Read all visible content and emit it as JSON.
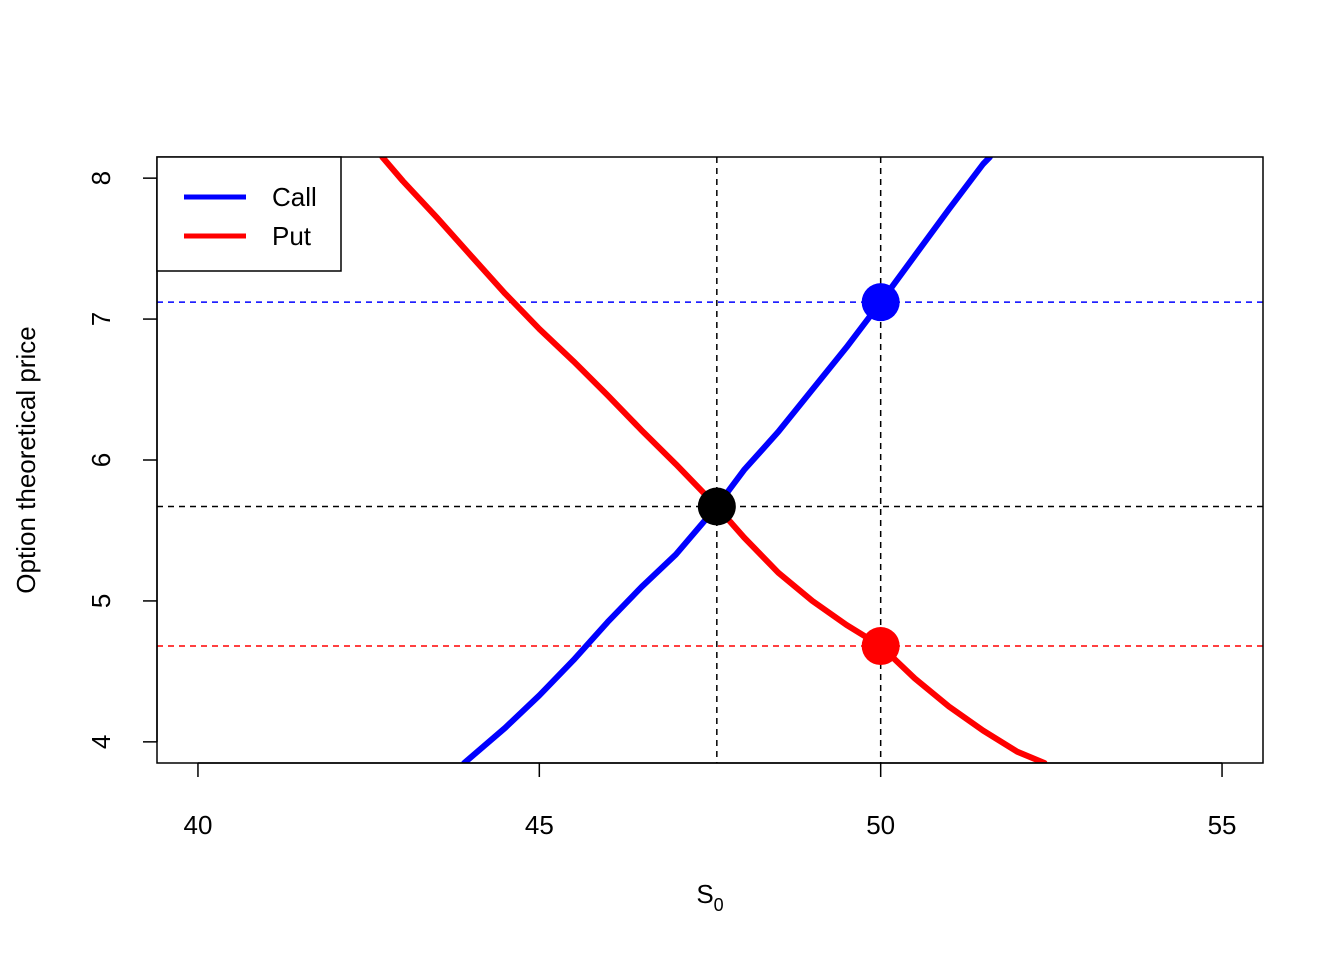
{
  "chart_data": {
    "type": "line",
    "title": "",
    "xlabel": "S",
    "xlabel_subscript": "0",
    "ylabel": "Option theoretical price",
    "xlim": [
      39.4,
      55.6
    ],
    "ylim": [
      3.85,
      8.15
    ],
    "xticks": [
      40,
      45,
      50,
      55
    ],
    "yticks": [
      4,
      5,
      6,
      7,
      8
    ],
    "grid": false,
    "legend": {
      "position": "top-left",
      "entries": [
        "Call",
        "Put"
      ]
    },
    "series": [
      {
        "name": "Call",
        "color": "#0000FF",
        "x": [
          43.9,
          44.5,
          45.0,
          45.5,
          46.0,
          46.5,
          47.0,
          47.6,
          48.0,
          48.5,
          49.0,
          49.5,
          50.0,
          50.5,
          51.0,
          51.5,
          51.6
        ],
        "y": [
          3.85,
          4.1,
          4.33,
          4.58,
          4.85,
          5.1,
          5.33,
          5.67,
          5.93,
          6.2,
          6.5,
          6.8,
          7.12,
          7.45,
          7.78,
          8.1,
          8.15
        ]
      },
      {
        "name": "Put",
        "color": "#FF0000",
        "x": [
          42.7,
          43.0,
          43.5,
          44.0,
          44.5,
          45.0,
          45.5,
          46.0,
          46.5,
          47.0,
          47.6,
          48.0,
          48.5,
          49.0,
          49.5,
          50.0,
          50.5,
          51.0,
          51.5,
          52.0,
          52.4
        ],
        "y": [
          8.15,
          7.98,
          7.72,
          7.45,
          7.18,
          6.93,
          6.7,
          6.46,
          6.21,
          5.97,
          5.67,
          5.45,
          5.2,
          5.0,
          4.83,
          4.68,
          4.45,
          4.25,
          4.08,
          3.93,
          3.85
        ]
      }
    ],
    "reference_lines": {
      "vertical": [
        {
          "x": 47.6,
          "color": "#000000"
        },
        {
          "x": 50,
          "color": "#000000"
        }
      ],
      "horizontal": [
        {
          "y": 7.12,
          "color": "#0000FF"
        },
        {
          "y": 5.67,
          "color": "#000000"
        },
        {
          "y": 4.68,
          "color": "#FF0000"
        }
      ]
    },
    "points": [
      {
        "x": 50,
        "y": 7.12,
        "color": "#0000FF"
      },
      {
        "x": 47.6,
        "y": 5.67,
        "color": "#000000"
      },
      {
        "x": 50,
        "y": 4.68,
        "color": "#FF0000"
      }
    ]
  }
}
